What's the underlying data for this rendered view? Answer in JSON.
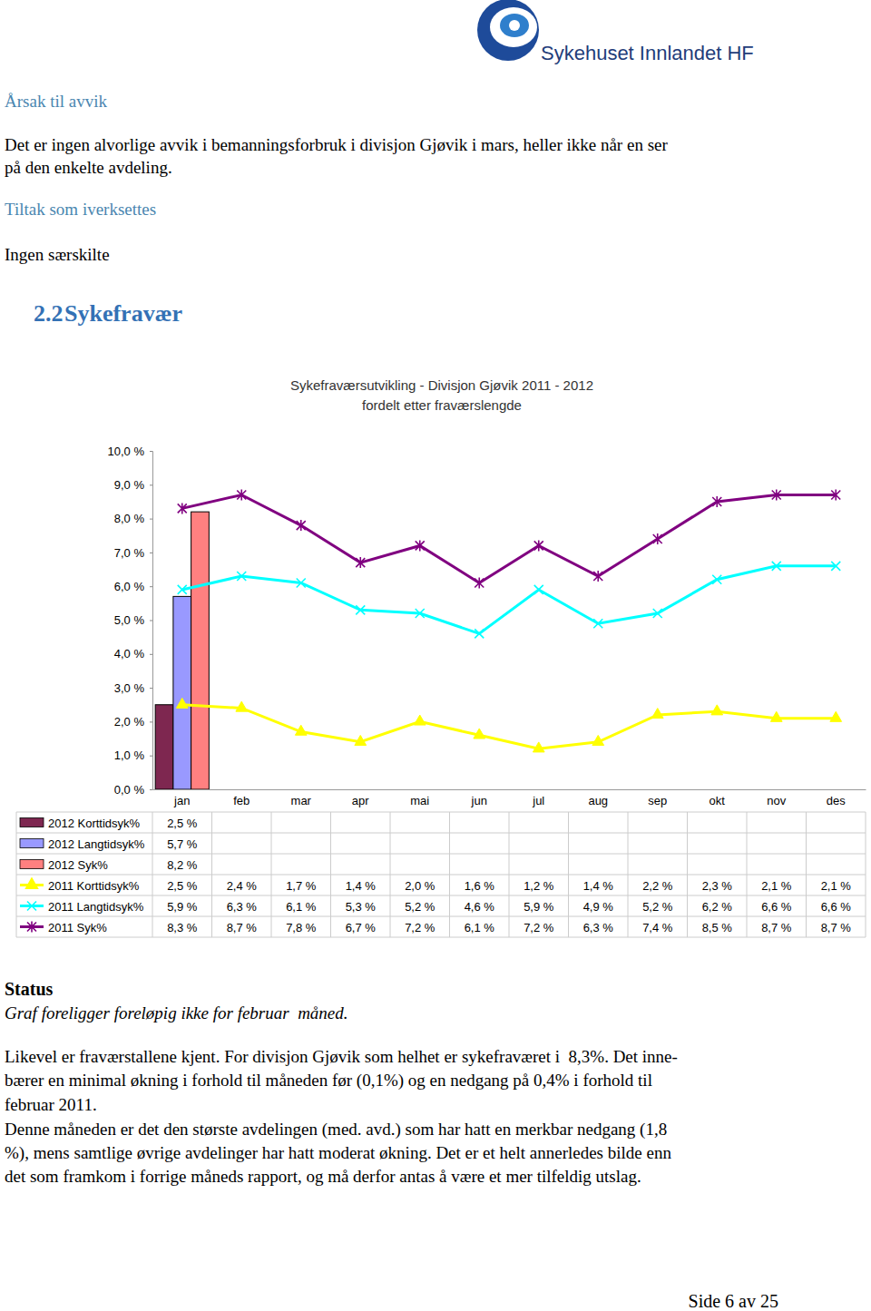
{
  "header": {
    "logo_text": "Sykehuset Innlandet HF"
  },
  "sections": [
    {
      "heading": "Årsak til avvik",
      "lines": [
        "Det er ingen alvorlige avvik i bemanningsforbruk i divisjon Gjøvik i mars, heller ikke når en ser",
        "på den enkelte avdeling."
      ]
    },
    {
      "heading": "Tiltak som iverksettes",
      "lines": [
        "Ingen særskilte"
      ]
    }
  ],
  "section_title": {
    "number": "2.2",
    "title": "Sykefravær"
  },
  "chart_data": {
    "type": "bar",
    "title": "Sykefraværsutvikling - Divisjon Gjøvik 2011 - 2012",
    "subtitle": "fordelt etter fraværslengde",
    "categories": [
      "jan",
      "feb",
      "mar",
      "apr",
      "mai",
      "jun",
      "jul",
      "aug",
      "sep",
      "okt",
      "nov",
      "des"
    ],
    "ylim": [
      0,
      10
    ],
    "yticks": [
      {
        "value": 0,
        "label": "0,0 %"
      },
      {
        "value": 1,
        "label": "1,0 %"
      },
      {
        "value": 2,
        "label": "2,0 %"
      },
      {
        "value": 3,
        "label": "3,0 %"
      },
      {
        "value": 4,
        "label": "4,0 %"
      },
      {
        "value": 5,
        "label": "5,0 %"
      },
      {
        "value": 6,
        "label": "6,0 %"
      },
      {
        "value": 7,
        "label": "7,0 %"
      },
      {
        "value": 8,
        "label": "8,0 %"
      },
      {
        "value": 9,
        "label": "9,0 %"
      },
      {
        "value": 10,
        "label": "10,0 %"
      }
    ],
    "grid": false,
    "data_labels": true,
    "series": [
      {
        "name": "2012 Korttidsyk%",
        "type": "bar",
        "color": "#7e2750",
        "values": [
          2.5,
          null,
          null,
          null,
          null,
          null,
          null,
          null,
          null,
          null,
          null,
          null
        ],
        "value_labels": [
          "2,5 %",
          null,
          null,
          null,
          null,
          null,
          null,
          null,
          null,
          null,
          null,
          null
        ]
      },
      {
        "name": "2012 Langtidsyk%",
        "type": "bar",
        "color": "#9999ff",
        "values": [
          5.7,
          null,
          null,
          null,
          null,
          null,
          null,
          null,
          null,
          null,
          null,
          null
        ],
        "value_labels": [
          "5,7 %",
          null,
          null,
          null,
          null,
          null,
          null,
          null,
          null,
          null,
          null,
          null
        ]
      },
      {
        "name": "2012 Syk%",
        "type": "bar",
        "color": "#ff8080",
        "values": [
          8.2,
          null,
          null,
          null,
          null,
          null,
          null,
          null,
          null,
          null,
          null,
          null
        ],
        "value_labels": [
          "8,2 %",
          null,
          null,
          null,
          null,
          null,
          null,
          null,
          null,
          null,
          null,
          null
        ]
      },
      {
        "name": "2011 Korttidsyk%",
        "type": "line",
        "color": "#ffff00",
        "marker": "triangle",
        "values": [
          2.5,
          2.4,
          1.7,
          1.4,
          2.0,
          1.6,
          1.2,
          1.4,
          2.2,
          2.3,
          2.1,
          2.1
        ],
        "value_labels": [
          "2,5 %",
          "2,4 %",
          "1,7 %",
          "1,4 %",
          "2,0 %",
          "1,6 %",
          "1,2 %",
          "1,4 %",
          "2,2 %",
          "2,3 %",
          "2,1 %",
          "2,1 %"
        ]
      },
      {
        "name": "2011 Langtidsyk%",
        "type": "line",
        "color": "#00ffff",
        "marker": "x",
        "values": [
          5.9,
          6.3,
          6.1,
          5.3,
          5.2,
          4.6,
          5.9,
          4.9,
          5.2,
          6.2,
          6.6,
          6.6
        ],
        "value_labels": [
          "5,9 %",
          "6,3 %",
          "6,1 %",
          "5,3 %",
          "5,2 %",
          "4,6 %",
          "5,9 %",
          "4,9 %",
          "5,2 %",
          "6,2 %",
          "6,6 %",
          "6,6 %"
        ]
      },
      {
        "name": "2011 Syk%",
        "type": "line",
        "color": "#800080",
        "marker": "star",
        "values": [
          8.3,
          8.7,
          7.8,
          6.7,
          7.2,
          6.1,
          7.2,
          6.3,
          7.4,
          8.5,
          8.7,
          8.7
        ],
        "value_labels": [
          "8,3 %",
          "8,7 %",
          "7,8 %",
          "6,7 %",
          "7,2 %",
          "6,1 %",
          "7,2 %",
          "6,3 %",
          "7,4 %",
          "8,5 %",
          "8,7 %",
          "8,7 %"
        ]
      }
    ]
  },
  "status": {
    "heading": "Status",
    "note": "Graf foreligger foreløpig ikke for februar  måned.",
    "lines": [
      "Likevel er fraværstallene kjent. For divisjon Gjøvik som helhet er sykefraværet i  8,3%. Det inne-",
      "bærer en minimal økning i forhold til måneden før (0,1%) og en nedgang på 0,4% i forhold til",
      "februar 2011.",
      "Denne måneden er det den største avdelingen (med. avd.) som har hatt en merkbar nedgang (1,8",
      "%), mens samtlige øvrige avdelinger har hatt moderat økning. Det er et helt annerledes bilde enn",
      "det som framkom i forrige måneds rapport, og må derfor antas å være et mer tilfeldig utslag."
    ]
  },
  "footer": {
    "page": "Side 6 av 25"
  }
}
